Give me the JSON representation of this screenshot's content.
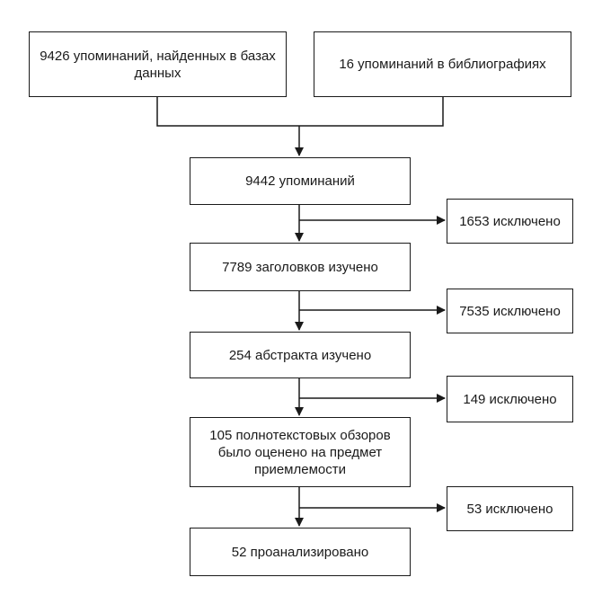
{
  "flowchart": {
    "sources": [
      {
        "label": "9426 упоминаний, найденных в базах данных"
      },
      {
        "label": "16 упоминаний в библиографиях"
      }
    ],
    "steps": [
      {
        "label": "9442 упоминаний"
      },
      {
        "label": "7789 заголовков изучено"
      },
      {
        "label": "254 абстракта изучено"
      },
      {
        "label": "105 полнотекстовых обзоров было оценено на предмет приемлемости"
      },
      {
        "label": "52 проанализировано"
      }
    ],
    "exclusions": [
      {
        "label": "1653 исключено"
      },
      {
        "label": "7535 исключено"
      },
      {
        "label": "149 исключено"
      },
      {
        "label": "53 исключено"
      }
    ]
  }
}
